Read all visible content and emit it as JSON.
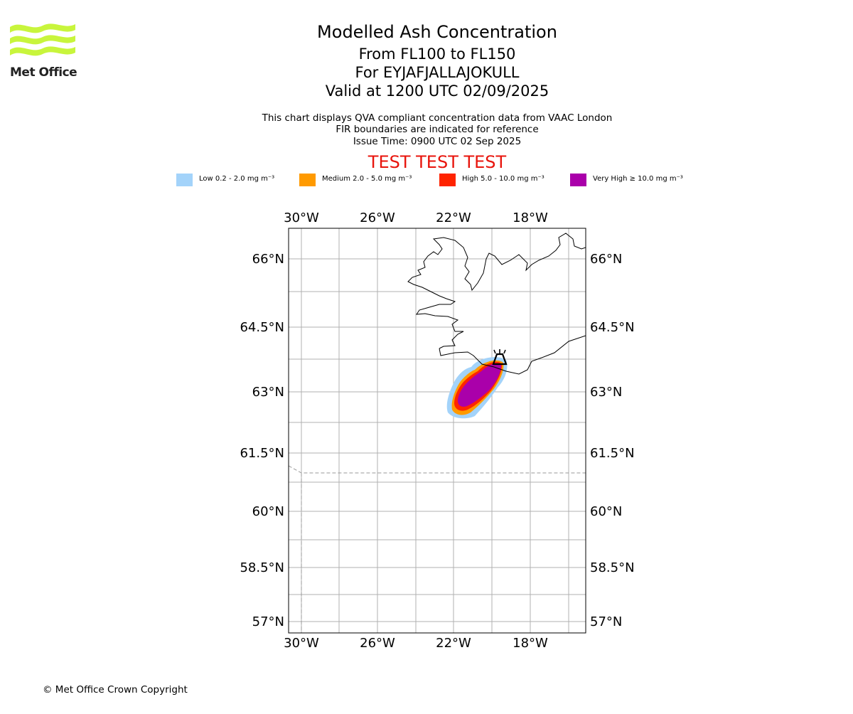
{
  "logo": {
    "text": "Met Office",
    "color": "#c8f53c"
  },
  "title": {
    "main": "Modelled Ash Concentration",
    "levels": "From FL100 to FL150",
    "volcano": "For EYJAFJALLAJOKULL",
    "valid": "Valid at 1200 UTC 02/09/2025"
  },
  "subtitle": {
    "line1": "This chart displays QVA compliant concentration data from VAAC London",
    "line2": "FIR boundaries are indicated for reference",
    "line3": "Issue Time: 0900 UTC 02 Sep 2025"
  },
  "test_banner": "TEST TEST TEST",
  "legend": [
    {
      "label": "Low 0.2 - 2.0 mg m⁻³",
      "color": "#a3d3fa"
    },
    {
      "label": "Medium 2.0 - 5.0 mg m⁻³",
      "color": "#ff9a00"
    },
    {
      "label": "High 5.0 - 10.0 mg m⁻³",
      "color": "#ff2400"
    },
    {
      "label": "Very High ≥ 10.0 mg m⁻³",
      "color": "#aa00aa"
    }
  ],
  "map": {
    "lon_range": [
      -30.35,
      -14.9
    ],
    "lat_range": [
      56.7,
      66.8
    ],
    "lon_ticks": [
      "30°W",
      "26°W",
      "22°W",
      "18°W"
    ],
    "lat_ticks": [
      "66°N",
      "64.5°N",
      "63°N",
      "61.5°N",
      "60°N",
      "58.5°N",
      "57°N"
    ],
    "volcano_lon": -19.6,
    "volcano_lat": 63.63
  },
  "footer": "© Met Office Crown Copyright"
}
